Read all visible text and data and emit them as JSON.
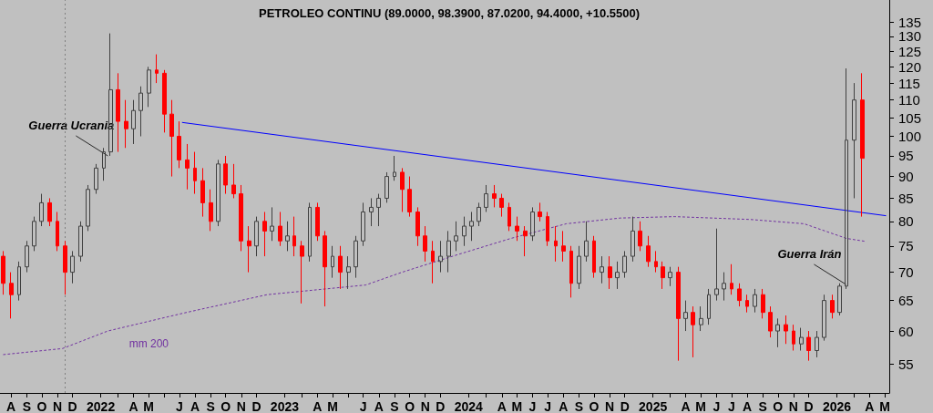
{
  "chart_data": {
    "type": "candlestick",
    "title": "PETROLEO CONTINU (89.0000, 98.3900, 87.0200, 94.4000, +10.5500)",
    "x": [
      "2021-08-01",
      "2021-08-16",
      "2021-09-01",
      "2021-09-16",
      "2021-10-01",
      "2021-10-16",
      "2021-11-01",
      "2021-11-16",
      "2021-12-01",
      "2021-12-16",
      "2022-01-01",
      "2022-01-16",
      "2022-02-01",
      "2022-02-16",
      "2022-03-01",
      "2022-03-16",
      "2022-04-01",
      "2022-04-16",
      "2022-05-01",
      "2022-05-16",
      "2022-06-01",
      "2022-06-16",
      "2022-07-01",
      "2022-07-16",
      "2022-08-01",
      "2022-08-16",
      "2022-09-01",
      "2022-09-16",
      "2022-10-01",
      "2022-10-16",
      "2022-11-01",
      "2022-11-16",
      "2022-12-01",
      "2022-12-16",
      "2023-01-01",
      "2023-01-16",
      "2023-02-01",
      "2023-02-16",
      "2023-03-01",
      "2023-03-16",
      "2023-04-01",
      "2023-04-16",
      "2023-05-01",
      "2023-05-16",
      "2023-06-01",
      "2023-06-16",
      "2023-07-01",
      "2023-07-16",
      "2023-08-01",
      "2023-08-16",
      "2023-09-01",
      "2023-09-16",
      "2023-10-01",
      "2023-10-16",
      "2023-11-01",
      "2023-11-16",
      "2023-12-01",
      "2023-12-16",
      "2024-01-01",
      "2024-01-16",
      "2024-02-01",
      "2024-02-16",
      "2024-03-01",
      "2024-03-16",
      "2024-04-01",
      "2024-04-16",
      "2024-05-01",
      "2024-05-16",
      "2024-06-01",
      "2024-06-16",
      "2024-07-01",
      "2024-07-16",
      "2024-08-01",
      "2024-08-16",
      "2024-09-01",
      "2024-09-16",
      "2024-10-01",
      "2024-10-16",
      "2024-11-01",
      "2024-11-16",
      "2024-12-01",
      "2024-12-16",
      "2025-01-01",
      "2025-01-16",
      "2025-02-01",
      "2025-02-16",
      "2025-03-01",
      "2025-03-16",
      "2025-04-01",
      "2025-04-16",
      "2025-05-01",
      "2025-05-16",
      "2025-06-01",
      "2025-06-16",
      "2025-07-01",
      "2025-07-16",
      "2025-08-01",
      "2025-08-16",
      "2025-09-01",
      "2025-09-16",
      "2025-10-01",
      "2025-10-16",
      "2025-11-01",
      "2025-11-16",
      "2025-12-01",
      "2025-12-16",
      "2026-01-01",
      "2026-01-16",
      "2026-02-01",
      "2026-02-16",
      "2026-03-01",
      "2026-03-16",
      "2026-04-01"
    ],
    "ohlc": [
      [
        73,
        74,
        66,
        68
      ],
      [
        68,
        70,
        62,
        66
      ],
      [
        66,
        72,
        65,
        71
      ],
      [
        71,
        76,
        70,
        75
      ],
      [
        75,
        81,
        74,
        80
      ],
      [
        80,
        86,
        79,
        84
      ],
      [
        84,
        85,
        79,
        80
      ],
      [
        80,
        82,
        74,
        75
      ],
      [
        75,
        76,
        66,
        70
      ],
      [
        70,
        74,
        68,
        73
      ],
      [
        73,
        80,
        72,
        79
      ],
      [
        79,
        88,
        78,
        87
      ],
      [
        87,
        93,
        86,
        92
      ],
      [
        92,
        97,
        89,
        96
      ],
      [
        96,
        131,
        95,
        113
      ],
      [
        113,
        118,
        96,
        104
      ],
      [
        104,
        110,
        97,
        102
      ],
      [
        102,
        110,
        98,
        107
      ],
      [
        107,
        114,
        100,
        112
      ],
      [
        112,
        120,
        108,
        119
      ],
      [
        119,
        124,
        115,
        118
      ],
      [
        118,
        119,
        101,
        106
      ],
      [
        106,
        110,
        90,
        100
      ],
      [
        100,
        104,
        92,
        94
      ],
      [
        94,
        98,
        87,
        92
      ],
      [
        92,
        96,
        86,
        89
      ],
      [
        89,
        92,
        81,
        84
      ],
      [
        84,
        87,
        78,
        80
      ],
      [
        80,
        94,
        79,
        93
      ],
      [
        93,
        95,
        86,
        88
      ],
      [
        88,
        93,
        85,
        86
      ],
      [
        86,
        88,
        74,
        76
      ],
      [
        76,
        79,
        70,
        75
      ],
      [
        75,
        81,
        73,
        80
      ],
      [
        80,
        82,
        73,
        78
      ],
      [
        78,
        83,
        76,
        79
      ],
      [
        79,
        82,
        75,
        76
      ],
      [
        76,
        80,
        74,
        77
      ],
      [
        77,
        81,
        73,
        75
      ],
      [
        75,
        76,
        64.5,
        73
      ],
      [
        73,
        84,
        72,
        83
      ],
      [
        83,
        84,
        76,
        77
      ],
      [
        77,
        78,
        64,
        71
      ],
      [
        71,
        75,
        69,
        73
      ],
      [
        73,
        75,
        67,
        70
      ],
      [
        70,
        73,
        67,
        71
      ],
      [
        71,
        77,
        69,
        76
      ],
      [
        76,
        84,
        75,
        82
      ],
      [
        82,
        85,
        79,
        83
      ],
      [
        83,
        86,
        79,
        85
      ],
      [
        85,
        91,
        84,
        90
      ],
      [
        90,
        95,
        89,
        91
      ],
      [
        91,
        92,
        82,
        87
      ],
      [
        87,
        90,
        81,
        82
      ],
      [
        82,
        83,
        75,
        77
      ],
      [
        77,
        79,
        72,
        74
      ],
      [
        74,
        76,
        68,
        72
      ],
      [
        72,
        76,
        70,
        73
      ],
      [
        73,
        78,
        70,
        76
      ],
      [
        76,
        80,
        74,
        77
      ],
      [
        77,
        81,
        75,
        79
      ],
      [
        79,
        82,
        76,
        80
      ],
      [
        80,
        84,
        79,
        83
      ],
      [
        83,
        88,
        82,
        86
      ],
      [
        86,
        88,
        83,
        85
      ],
      [
        85,
        86,
        81,
        83
      ],
      [
        83,
        84,
        78,
        79
      ],
      [
        79,
        81,
        76,
        78
      ],
      [
        78,
        79,
        73,
        77
      ],
      [
        77,
        83,
        76,
        82
      ],
      [
        82,
        84,
        80,
        81
      ],
      [
        81,
        82,
        75,
        76
      ],
      [
        76,
        79,
        72,
        75
      ],
      [
        75,
        78,
        72,
        74
      ],
      [
        74,
        75,
        65.5,
        68
      ],
      [
        68,
        75,
        67,
        73
      ],
      [
        73,
        80,
        72,
        76
      ],
      [
        76,
        77,
        69,
        70
      ],
      [
        70,
        73,
        68,
        71
      ],
      [
        71,
        73,
        67,
        69
      ],
      [
        69,
        72,
        67,
        70
      ],
      [
        70,
        74,
        69,
        73
      ],
      [
        73,
        81,
        72,
        78
      ],
      [
        78,
        80,
        74,
        75
      ],
      [
        75,
        77,
        71,
        72
      ],
      [
        72,
        74,
        70,
        71
      ],
      [
        71,
        72,
        67,
        69
      ],
      [
        69,
        71,
        67.5,
        70
      ],
      [
        70,
        71,
        55.5,
        62
      ],
      [
        62,
        65,
        60,
        63
      ],
      [
        63,
        64,
        56,
        61
      ],
      [
        61,
        64,
        60,
        62
      ],
      [
        62,
        67,
        61,
        66
      ],
      [
        66,
        78.5,
        65,
        67
      ],
      [
        67,
        70,
        65,
        68
      ],
      [
        68,
        71.5,
        66,
        67
      ],
      [
        67,
        68,
        64,
        65
      ],
      [
        65,
        66,
        63,
        64
      ],
      [
        64,
        67,
        63,
        66
      ],
      [
        66,
        67,
        62,
        63
      ],
      [
        63,
        64,
        59,
        60
      ],
      [
        60,
        62,
        57.5,
        61
      ],
      [
        61,
        62.5,
        58,
        60
      ],
      [
        60,
        61,
        57,
        58
      ],
      [
        58,
        60.5,
        57,
        59
      ],
      [
        59,
        60,
        55.5,
        57
      ],
      [
        57,
        60,
        56,
        59
      ],
      [
        59,
        66,
        58.5,
        65
      ],
      [
        65,
        66,
        62,
        63
      ],
      [
        63,
        68,
        62.5,
        67.5
      ],
      [
        67.5,
        119.5,
        67,
        99
      ],
      [
        99,
        115,
        85,
        110
      ],
      [
        110,
        118,
        81,
        94.4
      ]
    ],
    "colors": [
      "#ff0000",
      "#ff0000",
      "#404040",
      "#404040",
      "#404040",
      "#404040",
      "#ff0000",
      "#ff0000",
      "#ff0000",
      "#404040",
      "#404040",
      "#404040",
      "#404040",
      "#404040",
      "#404040",
      "#ff0000",
      "#ff0000",
      "#404040",
      "#404040",
      "#404040",
      "#ff0000",
      "#ff0000",
      "#ff0000",
      "#ff0000",
      "#ff0000",
      "#ff0000",
      "#ff0000",
      "#ff0000",
      "#404040",
      "#ff0000",
      "#ff0000",
      "#ff0000",
      "#ff0000",
      "#404040",
      "#ff0000",
      "#404040",
      "#ff0000",
      "#404040",
      "#ff0000",
      "#ff0000",
      "#404040",
      "#ff0000",
      "#ff0000",
      "#404040",
      "#ff0000",
      "#404040",
      "#404040",
      "#404040",
      "#404040",
      "#404040",
      "#404040",
      "#404040",
      "#ff0000",
      "#ff0000",
      "#ff0000",
      "#ff0000",
      "#ff0000",
      "#404040",
      "#404040",
      "#404040",
      "#404040",
      "#404040",
      "#404040",
      "#404040",
      "#ff0000",
      "#ff0000",
      "#ff0000",
      "#ff0000",
      "#ff0000",
      "#404040",
      "#ff0000",
      "#ff0000",
      "#ff0000",
      "#ff0000",
      "#ff0000",
      "#404040",
      "#404040",
      "#ff0000",
      "#404040",
      "#ff0000",
      "#404040",
      "#404040",
      "#404040",
      "#ff0000",
      "#ff0000",
      "#ff0000",
      "#ff0000",
      "#404040",
      "#ff0000",
      "#404040",
      "#ff0000",
      "#404040",
      "#404040",
      "#404040",
      "#404040",
      "#ff0000",
      "#ff0000",
      "#ff0000",
      "#404040",
      "#ff0000",
      "#ff0000",
      "#404040",
      "#ff0000",
      "#ff0000",
      "#404040",
      "#ff0000",
      "#404040",
      "#404040",
      "#ff0000",
      "#404040",
      "#404040",
      "#404040",
      "#ff0000"
    ],
    "series": [
      {
        "type": "line",
        "name": "mm 200",
        "color": "#7030a0",
        "line_style": "dotted",
        "marker": "none",
        "x": [
          "2021-08-01",
          "2021-11-26",
          "2022-02-24",
          "2022-07-25",
          "2023-01-06",
          "2023-07-21",
          "2023-10-01",
          "2024-01-19",
          "2024-05-04",
          "2024-08-22",
          "2024-12-07",
          "2025-03-25",
          "2025-08-22",
          "2025-12-07",
          "2026-03-01",
          "2026-04-08"
        ],
        "values": [
          56.4,
          57.3,
          60,
          62.9,
          66,
          67.7,
          70,
          73.3,
          76.5,
          79.5,
          80.7,
          81,
          80.4,
          79.5,
          76.5,
          75.9
        ]
      },
      {
        "type": "line",
        "color": "#0000ff",
        "line_style": "solid",
        "marker": "none",
        "x": [
          "2022-07-22",
          "2026-05-18"
        ],
        "values": [
          103.7,
          81.2
        ]
      }
    ],
    "log": true,
    "ylim": [
      51,
      143
    ],
    "yticks": [
      55,
      60,
      65,
      70,
      75,
      80,
      85,
      90,
      95,
      100,
      105,
      110,
      115,
      120,
      125,
      130,
      135
    ],
    "xlim": [
      "2021-07-25",
      "2026-05-25"
    ],
    "xticks": [
      {
        "value": "2021-08-16",
        "label": "A"
      },
      {
        "value": "2021-09-16",
        "label": "S"
      },
      {
        "value": "2021-10-16",
        "label": "O"
      },
      {
        "value": "2021-11-16",
        "label": "N"
      },
      {
        "value": "2021-12-16",
        "label": "D"
      },
      {
        "value": "2022-02-10",
        "label": "2022"
      },
      {
        "value": "2022-03-16",
        "label": null
      },
      {
        "value": "2022-04-16",
        "label": "A"
      },
      {
        "value": "2022-05-16",
        "label": "M"
      },
      {
        "value": "2022-06-16",
        "label": null
      },
      {
        "value": "2022-07-16",
        "label": "J"
      },
      {
        "value": "2022-08-16",
        "label": "A"
      },
      {
        "value": "2022-09-16",
        "label": "S"
      },
      {
        "value": "2022-10-16",
        "label": "O"
      },
      {
        "value": "2022-11-16",
        "label": "N"
      },
      {
        "value": "2022-12-16",
        "label": "D"
      },
      {
        "value": "2023-02-10",
        "label": "2023"
      },
      {
        "value": "2023-03-16",
        "label": null
      },
      {
        "value": "2023-04-16",
        "label": "A"
      },
      {
        "value": "2023-05-16",
        "label": "M"
      },
      {
        "value": "2023-06-16",
        "label": null
      },
      {
        "value": "2023-07-16",
        "label": "J"
      },
      {
        "value": "2023-08-16",
        "label": "A"
      },
      {
        "value": "2023-09-16",
        "label": "S"
      },
      {
        "value": "2023-10-16",
        "label": "O"
      },
      {
        "value": "2023-11-16",
        "label": "N"
      },
      {
        "value": "2023-12-16",
        "label": "D"
      },
      {
        "value": "2024-02-10",
        "label": "2024"
      },
      {
        "value": "2024-03-16",
        "label": null
      },
      {
        "value": "2024-04-16",
        "label": "A"
      },
      {
        "value": "2024-05-16",
        "label": "M"
      },
      {
        "value": "2024-06-16",
        "label": "J"
      },
      {
        "value": "2024-07-16",
        "label": "J"
      },
      {
        "value": "2024-08-16",
        "label": "A"
      },
      {
        "value": "2024-09-16",
        "label": "S"
      },
      {
        "value": "2024-10-16",
        "label": "O"
      },
      {
        "value": "2024-11-16",
        "label": "N"
      },
      {
        "value": "2024-12-16",
        "label": "D"
      },
      {
        "value": "2025-02-10",
        "label": "2025"
      },
      {
        "value": "2025-03-16",
        "label": null
      },
      {
        "value": "2025-04-16",
        "label": "A"
      },
      {
        "value": "2025-05-16",
        "label": "M"
      },
      {
        "value": "2025-06-16",
        "label": "J"
      },
      {
        "value": "2025-07-16",
        "label": "J"
      },
      {
        "value": "2025-08-16",
        "label": "A"
      },
      {
        "value": "2025-09-16",
        "label": "S"
      },
      {
        "value": "2025-10-16",
        "label": "O"
      },
      {
        "value": "2025-11-16",
        "label": "N"
      },
      {
        "value": "2025-12-16",
        "label": "D"
      },
      {
        "value": "2026-02-10",
        "label": "2026"
      },
      {
        "value": "2026-03-16",
        "label": null
      },
      {
        "value": "2026-04-16",
        "label": "A"
      },
      {
        "value": "2026-05-16",
        "label": "M"
      }
    ],
    "ref_lines": [
      {
        "axis": "x",
        "value": "2021-12-01",
        "color": "#808080",
        "line_style": "dotted"
      }
    ],
    "annotations": [
      {
        "text": "Guerra Ucrania",
        "x": "2022-02-24",
        "y": 95
      },
      {
        "text": "Guerra Irán",
        "x": "2026-02-28",
        "y": 67.8
      }
    ]
  }
}
